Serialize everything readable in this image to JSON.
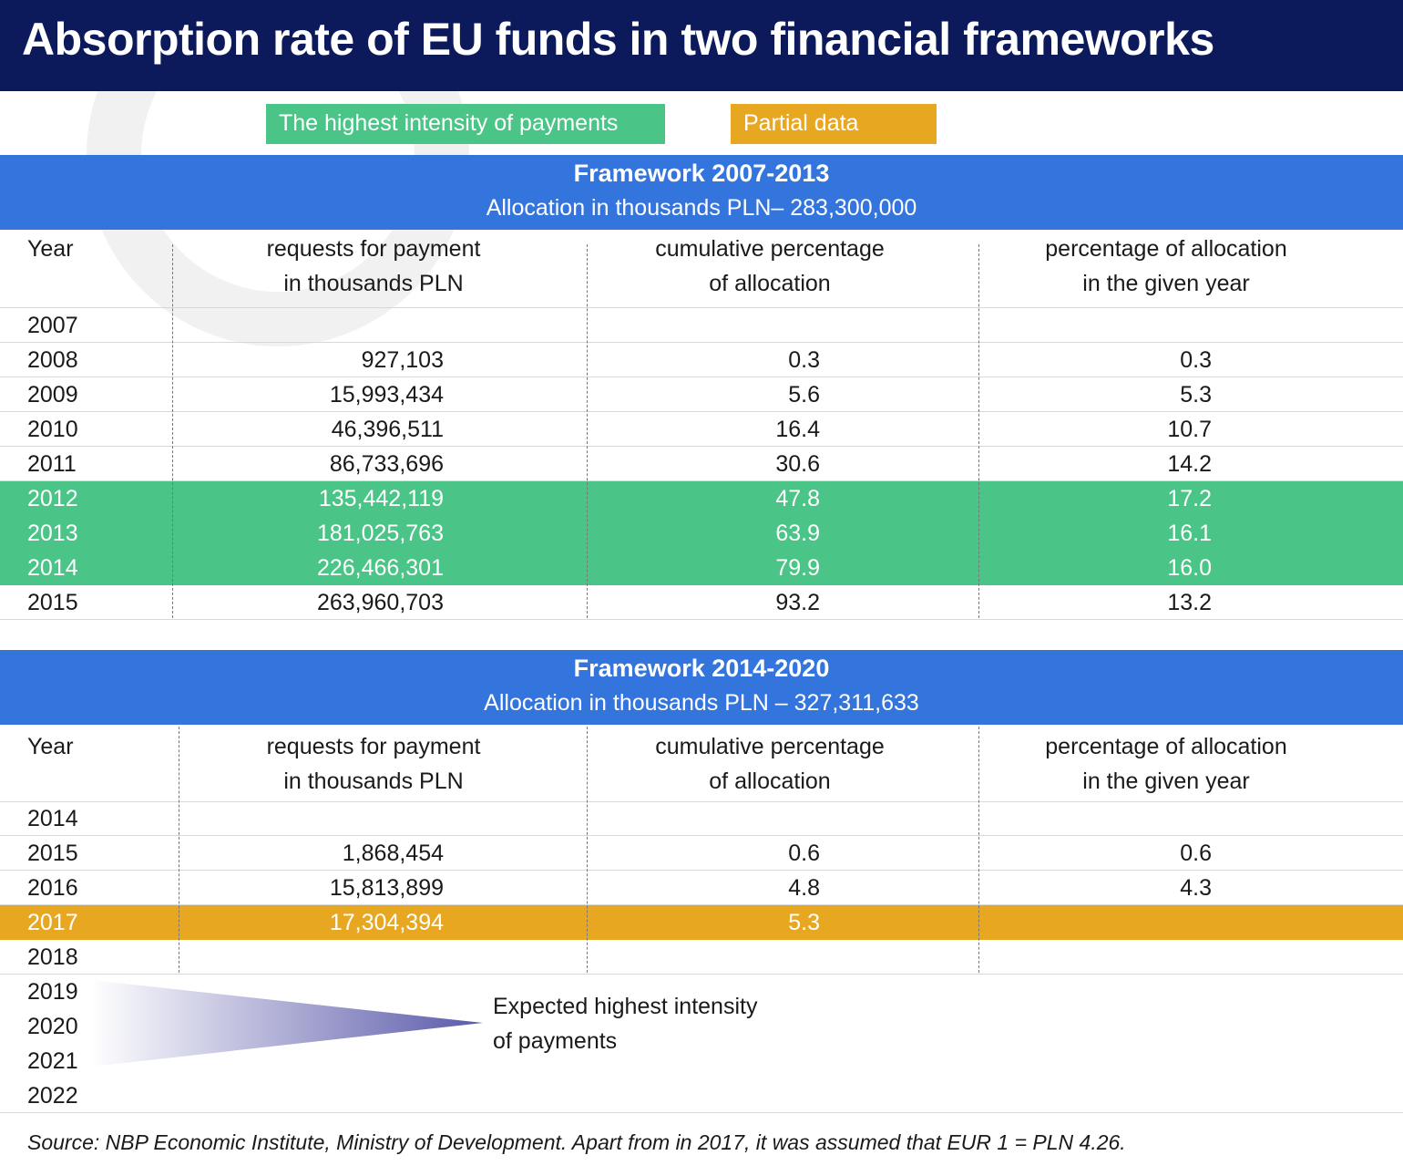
{
  "title": "Absorption rate of EU funds in two financial frameworks",
  "legend": {
    "highest": "The highest intensity of payments",
    "partial": "Partial data"
  },
  "columns": {
    "year": "Year",
    "req_line1": "requests for payment",
    "req_line2": "in thousands PLN",
    "cum_line1": "cumulative percentage",
    "cum_line2": "of allocation",
    "pct_line1": "percentage of allocation",
    "pct_line2": "in the given year"
  },
  "framework1": {
    "title": "Framework 2007-2013",
    "allocation": "Allocation in thousands PLN– 283,300,000",
    "rows": [
      {
        "year": "2007",
        "req": "",
        "cum": "",
        "pct": ""
      },
      {
        "year": "2008",
        "req": "927,103",
        "cum": "0.3",
        "pct": "0.3"
      },
      {
        "year": "2009",
        "req": "15,993,434",
        "cum": "5.6",
        "pct": "5.3"
      },
      {
        "year": "2010",
        "req": "46,396,511",
        "cum": "16.4",
        "pct": "10.7"
      },
      {
        "year": "2011",
        "req": "86,733,696",
        "cum": "30.6",
        "pct": "14.2"
      },
      {
        "year": "2012",
        "req": "135,442,119",
        "cum": "47.8",
        "pct": "17.2"
      },
      {
        "year": "2013",
        "req": "181,025,763",
        "cum": "63.9",
        "pct": "16.1"
      },
      {
        "year": "2014",
        "req": "226,466,301",
        "cum": "79.9",
        "pct": "16.0"
      },
      {
        "year": "2015",
        "req": "263,960,703",
        "cum": "93.2",
        "pct": "13.2"
      }
    ]
  },
  "framework2": {
    "title": "Framework 2014-2020",
    "allocation": "Allocation in thousands PLN – 327,311,633",
    "rows": [
      {
        "year": "2014",
        "req": "",
        "cum": "",
        "pct": ""
      },
      {
        "year": "2015",
        "req": "1,868,454",
        "cum": "0.6",
        "pct": "0.6"
      },
      {
        "year": "2016",
        "req": "15,813,899",
        "cum": "4.8",
        "pct": "4.3"
      },
      {
        "year": "2017",
        "req": "17,304,394",
        "cum": "5.3",
        "pct": ""
      },
      {
        "year": "2018",
        "req": "",
        "cum": "",
        "pct": ""
      }
    ],
    "future_years": [
      "2019",
      "2020",
      "2021",
      "2022"
    ],
    "expected_line1": "Expected highest intensity",
    "expected_line2": "of payments"
  },
  "source": "Source: NBP Economic Institute, Ministry of Development. Apart from in 2017, it was assumed that EUR 1 = PLN 4.26.",
  "colors": {
    "title_bg": "#0c1a5b",
    "header_bg": "#3475dd",
    "highlight_green": "#4bc487",
    "highlight_gold": "#e8a720"
  }
}
